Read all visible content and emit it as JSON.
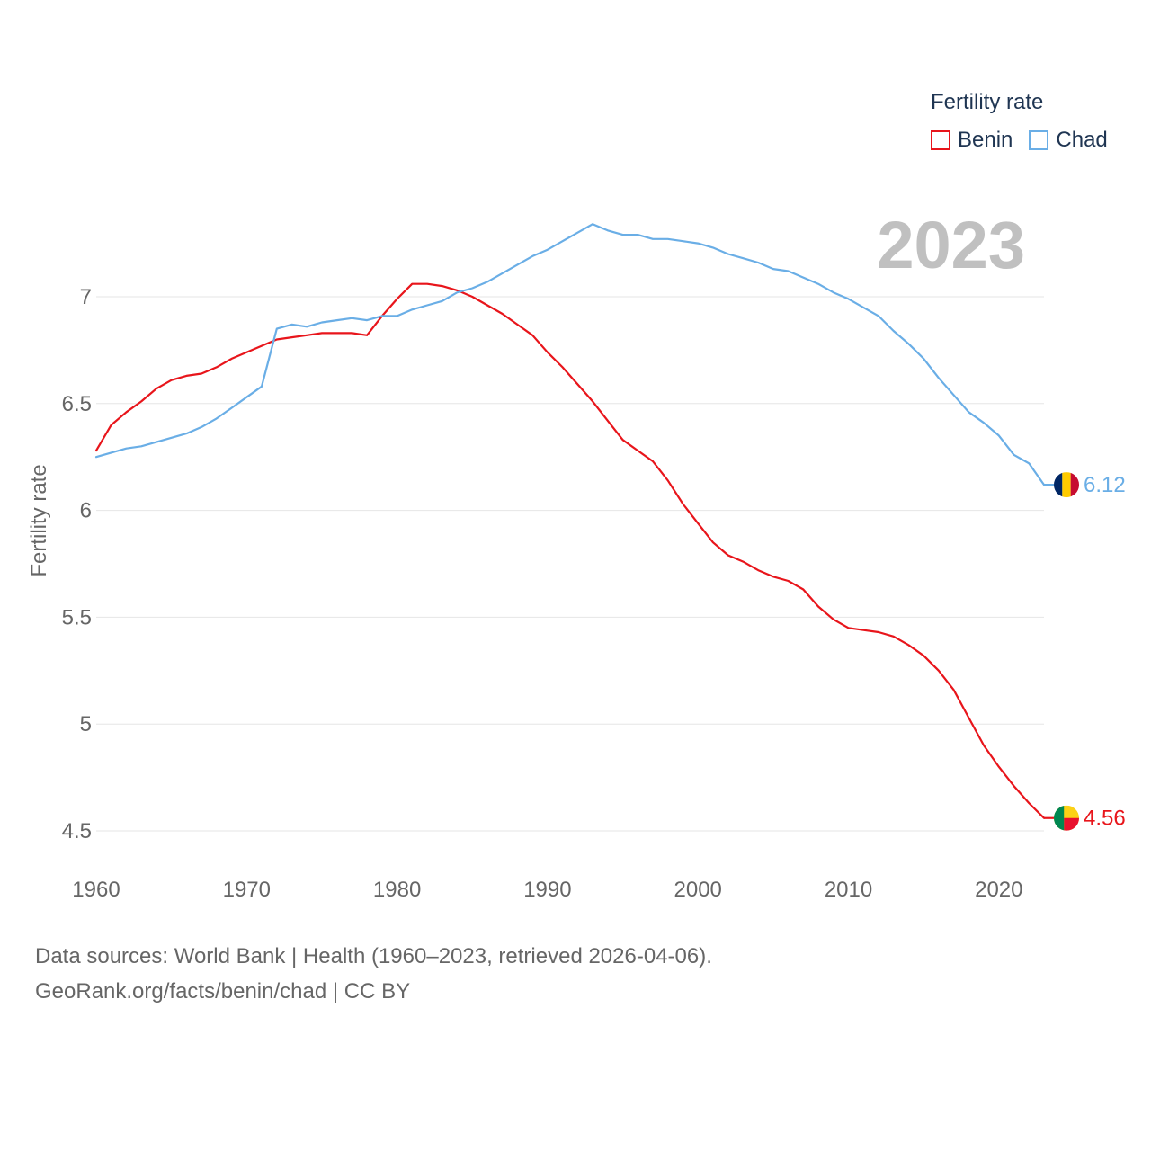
{
  "legend": {
    "title": "Fertility rate",
    "items": [
      {
        "label": "Benin",
        "color": "#e8151b"
      },
      {
        "label": "Chad",
        "color": "#6aaee6"
      }
    ]
  },
  "source": {
    "line1": "Data sources: World Bank | Health (1960–2023, retrieved 2026-04-06).",
    "line2": "GeoRank.org/facts/benin/chad | CC BY"
  },
  "chart_data": {
    "type": "line",
    "title": "Fertility rate",
    "year_label": "2023",
    "xlabel": "",
    "ylabel": "Fertility rate",
    "xlim": [
      1960,
      2023
    ],
    "ylim": [
      4.5,
      7.35
    ],
    "x_ticks": [
      1960,
      1970,
      1980,
      1990,
      2000,
      2010,
      2020
    ],
    "y_ticks": [
      4.5,
      5,
      5.5,
      6,
      6.5,
      7
    ],
    "y_tick_labels": [
      "4.5",
      "5",
      "5.5",
      "6",
      "6.5",
      "7"
    ],
    "grid": true,
    "x": [
      1960,
      1961,
      1962,
      1963,
      1964,
      1965,
      1966,
      1967,
      1968,
      1969,
      1970,
      1971,
      1972,
      1973,
      1974,
      1975,
      1976,
      1977,
      1978,
      1979,
      1980,
      1981,
      1982,
      1983,
      1984,
      1985,
      1986,
      1987,
      1988,
      1989,
      1990,
      1991,
      1992,
      1993,
      1994,
      1995,
      1996,
      1997,
      1998,
      1999,
      2000,
      2001,
      2002,
      2003,
      2004,
      2005,
      2006,
      2007,
      2008,
      2009,
      2010,
      2011,
      2012,
      2013,
      2014,
      2015,
      2016,
      2017,
      2018,
      2019,
      2020,
      2021,
      2022,
      2023
    ],
    "series": [
      {
        "name": "Benin",
        "color": "#e8151b",
        "end_label": "4.56",
        "values": [
          6.28,
          6.4,
          6.46,
          6.51,
          6.57,
          6.61,
          6.63,
          6.64,
          6.67,
          6.71,
          6.74,
          6.77,
          6.8,
          6.81,
          6.82,
          6.83,
          6.83,
          6.83,
          6.82,
          6.91,
          6.99,
          7.06,
          7.06,
          7.05,
          7.03,
          7.0,
          6.96,
          6.92,
          6.87,
          6.82,
          6.74,
          6.67,
          6.59,
          6.51,
          6.42,
          6.33,
          6.28,
          6.23,
          6.14,
          6.03,
          5.94,
          5.85,
          5.79,
          5.76,
          5.72,
          5.69,
          5.67,
          5.63,
          5.55,
          5.49,
          5.45,
          5.44,
          5.43,
          5.41,
          5.37,
          5.32,
          5.25,
          5.16,
          5.03,
          4.9,
          4.8,
          4.71,
          4.63,
          4.56
        ]
      },
      {
        "name": "Chad",
        "color": "#6aaee6",
        "end_label": "6.12",
        "values": [
          6.25,
          6.27,
          6.29,
          6.3,
          6.32,
          6.34,
          6.36,
          6.39,
          6.43,
          6.48,
          6.53,
          6.58,
          6.85,
          6.87,
          6.86,
          6.88,
          6.89,
          6.9,
          6.89,
          6.91,
          6.91,
          6.94,
          6.96,
          6.98,
          7.02,
          7.04,
          7.07,
          7.11,
          7.15,
          7.19,
          7.22,
          7.26,
          7.3,
          7.34,
          7.31,
          7.29,
          7.29,
          7.27,
          7.27,
          7.26,
          7.25,
          7.23,
          7.2,
          7.18,
          7.16,
          7.13,
          7.12,
          7.09,
          7.06,
          7.02,
          6.99,
          6.95,
          6.91,
          6.84,
          6.78,
          6.71,
          6.62,
          6.54,
          6.46,
          6.41,
          6.35,
          6.26,
          6.22,
          6.12
        ]
      }
    ]
  }
}
